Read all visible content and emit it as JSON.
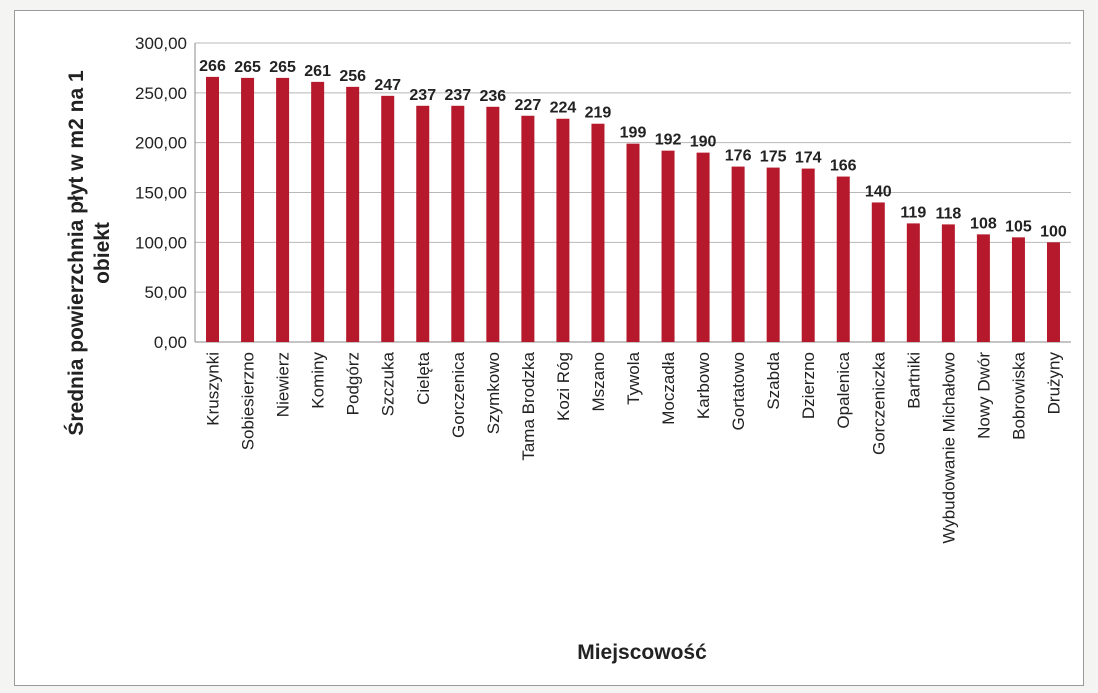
{
  "chart_data": {
    "type": "bar",
    "xlabel": "Miejscowość",
    "ylabel": "Średnia powierzchnia płyt w m2 na 1 obiekt",
    "ylim": [
      0,
      300
    ],
    "yticks": [
      "0,00",
      "50,00",
      "100,00",
      "150,00",
      "200,00",
      "250,00",
      "300,00"
    ],
    "grid": true,
    "bar_color": "#b5192b",
    "categories": [
      "Kruszynki",
      "Sobiesierzno",
      "Niewierz",
      "Kominy",
      "Podgórz",
      "Szczuka",
      "Cielęta",
      "Gorczenica",
      "Szymkowo",
      "Tama Brodzka",
      "Kozi Róg",
      "Mszano",
      "Tywola",
      "Moczadła",
      "Karbowo",
      "Gortatowo",
      "Szabda",
      "Dzierzno",
      "Opalenica",
      "Gorczeniczka",
      "Bartniki",
      "Wybudowanie Michałowo",
      "Nowy Dwór",
      "Bobrowiska",
      "Drużyny"
    ],
    "values": [
      266,
      265,
      265,
      261,
      256,
      247,
      237,
      237,
      236,
      227,
      224,
      219,
      199,
      192,
      190,
      176,
      175,
      174,
      166,
      140,
      119,
      118,
      108,
      105,
      100
    ]
  }
}
